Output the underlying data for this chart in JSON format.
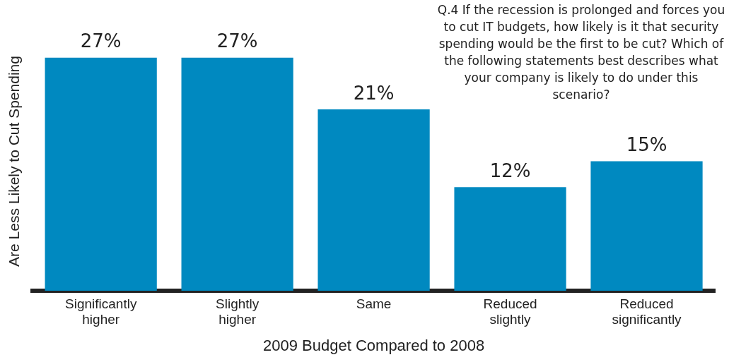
{
  "chart_data": {
    "type": "bar",
    "xlabel": "2009 Budget Compared to 2008",
    "ylabel": "Are Less Likely to Cut Spending",
    "annotations": [
      "Q.4 If the recession is prolonged and forces you to cut IT budgets, how likely is it that security spending would be the first to be cut? Which of the following statements best describes what your company is likely to do under this scenario?"
    ],
    "categories": [
      "Significantly higher",
      "Slightly higher",
      "Same",
      "Reduced slightly",
      "Reduced significantly"
    ],
    "values": [
      27,
      27,
      21,
      12,
      15
    ],
    "color": "#0089c0",
    "value_labels": [
      "27%",
      "27%",
      "21%",
      "12%",
      "15%"
    ],
    "grid": false,
    "legend": false
  }
}
